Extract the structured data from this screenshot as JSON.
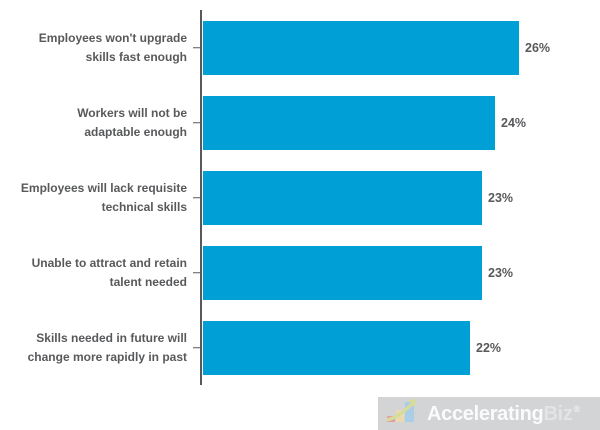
{
  "chart_data": {
    "type": "bar",
    "orientation": "horizontal",
    "title": "",
    "xlabel": "",
    "ylabel": "",
    "grid": false,
    "legend": false,
    "xlim": [
      0,
      31
    ],
    "categories": [
      "Employees won't upgrade\nskills fast enough",
      "Workers will not be\nadaptable enough",
      "Employees will lack requisite\ntechnical skills",
      "Unable to attract and retain\ntalent needed",
      "Skills needed in future will\nchange more rapidly in past"
    ],
    "values": [
      26,
      24,
      23,
      23,
      22
    ],
    "value_labels": [
      "26%",
      "24%",
      "23%",
      "23%",
      "22%"
    ],
    "bar_color": "#00A0D6",
    "label_color": "#58595B",
    "axis_color": "#58595B"
  },
  "logo": {
    "brand_primary": "Accelerating",
    "brand_secondary": "Biz",
    "registered": "®",
    "background_color": "#D2D4D6",
    "icon": "growth-chart-icon"
  }
}
